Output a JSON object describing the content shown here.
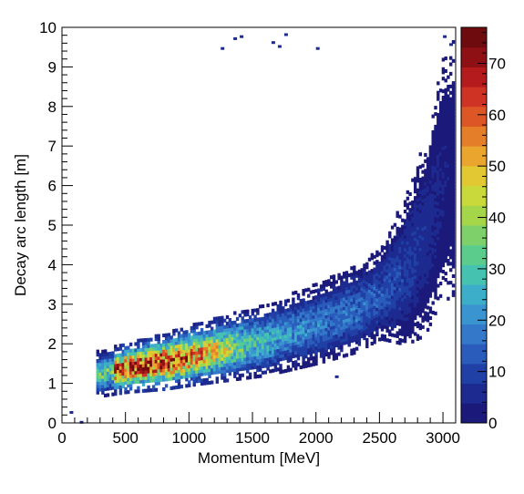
{
  "chart_data": {
    "type": "heatmap",
    "title": "",
    "xlabel": "Momentum [MeV]",
    "ylabel": "Decay arc length [m]",
    "xlim": [
      0,
      3100
    ],
    "ylim": [
      0,
      10
    ],
    "x_ticks": [
      "0",
      "500",
      "1000",
      "1500",
      "2000",
      "2500",
      "3000"
    ],
    "y_ticks": [
      "0",
      "1",
      "2",
      "3",
      "4",
      "5",
      "6",
      "7",
      "8",
      "9",
      "10"
    ],
    "colorbar": {
      "range": [
        0,
        77
      ],
      "ticks": [
        "0",
        "10",
        "20",
        "30",
        "40",
        "50",
        "60",
        "70"
      ],
      "palette": [
        "#1b1a7a",
        "#1d2a8f",
        "#2040a6",
        "#2a5cbc",
        "#3378c9",
        "#3a94cf",
        "#3caec9",
        "#45c2b0",
        "#5bcc8c",
        "#7ed16a",
        "#a5d64a",
        "#c9d83a",
        "#e2c833",
        "#e9a52d",
        "#e47e29",
        "#dd5726",
        "#cf3323",
        "#b41b1d",
        "#8e1014",
        "#6e0b0f"
      ]
    },
    "distribution": {
      "description": "counts per bin",
      "center_line": {
        "momentum_MeV": [
          300,
          500,
          800,
          1000,
          1300,
          1600,
          2000,
          2300,
          2500,
          2700,
          2850,
          3000
        ],
        "arc_length_m": [
          1.2,
          1.35,
          1.5,
          1.65,
          1.85,
          2.05,
          2.45,
          2.8,
          3.2,
          3.8,
          4.6,
          6.2
        ]
      },
      "peak_counts": 77,
      "peak_momentum_MeV": 700,
      "outliers": [
        {
          "x": 1250,
          "y": 9.5
        },
        {
          "x": 1350,
          "y": 9.75
        },
        {
          "x": 1400,
          "y": 9.8
        },
        {
          "x": 1650,
          "y": 9.65
        },
        {
          "x": 1700,
          "y": 9.55
        },
        {
          "x": 1750,
          "y": 9.85
        },
        {
          "x": 2000,
          "y": 9.5
        },
        {
          "x": 3000,
          "y": 9.8
        },
        {
          "x": 3050,
          "y": 9.6
        },
        {
          "x": 60,
          "y": 0.3
        },
        {
          "x": 140,
          "y": 0.05
        },
        {
          "x": 2150,
          "y": 1.2
        }
      ]
    }
  }
}
